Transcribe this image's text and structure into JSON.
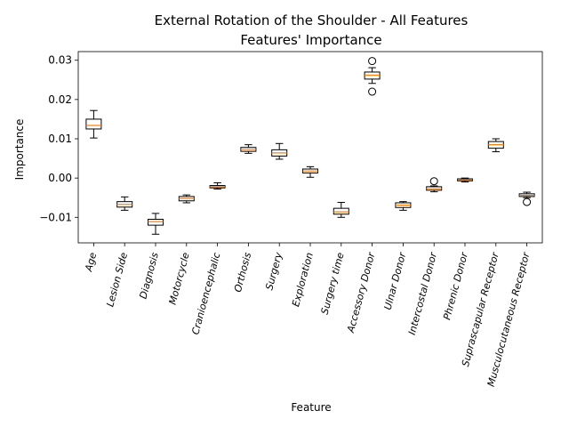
{
  "chart_data": {
    "type": "boxplot",
    "title": "External Rotation of the Shoulder - All Features",
    "subtitle": "Features' Importance",
    "xlabel": "Feature",
    "ylabel": "Importance",
    "ylim": [
      -0.0165,
      0.0322
    ],
    "yticks": [
      -0.01,
      0.0,
      0.01,
      0.02,
      0.03
    ],
    "ytick_labels": [
      "−0.01",
      "0.00",
      "0.01",
      "0.02",
      "0.03"
    ],
    "grid": false,
    "colors": {
      "box": "#000000",
      "median": "#ff7f0e"
    },
    "categories": [
      "Age",
      "Lesion Side",
      "Diagnosis",
      "Motorcycle",
      "Cranioencephalic",
      "Orthosis",
      "Surgery",
      "Exploration",
      "Surgery time",
      "Accessory Donor",
      "Ulnar Donor",
      "Intercostal Donor",
      "Phrenic Donor",
      "Suprascapular Receptor",
      "Musculocutaneous Receptor"
    ],
    "boxes": [
      {
        "whislo": 0.0102,
        "q1": 0.0125,
        "med": 0.0134,
        "q3": 0.015,
        "whishi": 0.0172,
        "fliers": []
      },
      {
        "whislo": -0.0082,
        "q1": -0.0074,
        "med": -0.0067,
        "q3": -0.006,
        "whishi": -0.0048,
        "fliers": []
      },
      {
        "whislo": -0.0143,
        "q1": -0.012,
        "med": -0.0111,
        "q3": -0.0105,
        "whishi": -0.009,
        "fliers": []
      },
      {
        "whislo": -0.0063,
        "q1": -0.0058,
        "med": -0.0052,
        "q3": -0.0047,
        "whishi": -0.0043,
        "fliers": []
      },
      {
        "whislo": -0.0028,
        "q1": -0.0025,
        "med": -0.0022,
        "q3": -0.0019,
        "whishi": -0.0012,
        "fliers": []
      },
      {
        "whislo": 0.0063,
        "q1": 0.0068,
        "med": 0.0073,
        "q3": 0.0078,
        "whishi": 0.0085,
        "fliers": []
      },
      {
        "whislo": 0.0048,
        "q1": 0.0056,
        "med": 0.0064,
        "q3": 0.0072,
        "whishi": 0.0088,
        "fliers": []
      },
      {
        "whislo": 0.0002,
        "q1": 0.0013,
        "med": 0.0018,
        "q3": 0.0023,
        "whishi": 0.0029,
        "fliers": []
      },
      {
        "whislo": -0.01,
        "q1": -0.0092,
        "med": -0.0086,
        "q3": -0.0077,
        "whishi": -0.0062,
        "fliers": []
      },
      {
        "whislo": 0.0241,
        "q1": 0.0252,
        "med": 0.0262,
        "q3": 0.027,
        "whishi": 0.0281,
        "fliers": [
          0.0298,
          0.022
        ]
      },
      {
        "whislo": -0.0082,
        "q1": -0.0075,
        "med": -0.0069,
        "q3": -0.0063,
        "whishi": -0.006,
        "fliers": []
      },
      {
        "whislo": -0.0035,
        "q1": -0.0031,
        "med": -0.0027,
        "q3": -0.0022,
        "whishi": -0.002,
        "fliers": [
          -0.0008
        ]
      },
      {
        "whislo": -0.001,
        "q1": -0.0007,
        "med": -0.0004,
        "q3": -0.0002,
        "whishi": 0.0,
        "fliers": []
      },
      {
        "whislo": 0.0067,
        "q1": 0.0076,
        "med": 0.0085,
        "q3": 0.0093,
        "whishi": 0.01,
        "fliers": []
      },
      {
        "whislo": -0.005,
        "q1": -0.0047,
        "med": -0.0044,
        "q3": -0.004,
        "whishi": -0.0036,
        "fliers": [
          -0.0061
        ]
      }
    ]
  }
}
